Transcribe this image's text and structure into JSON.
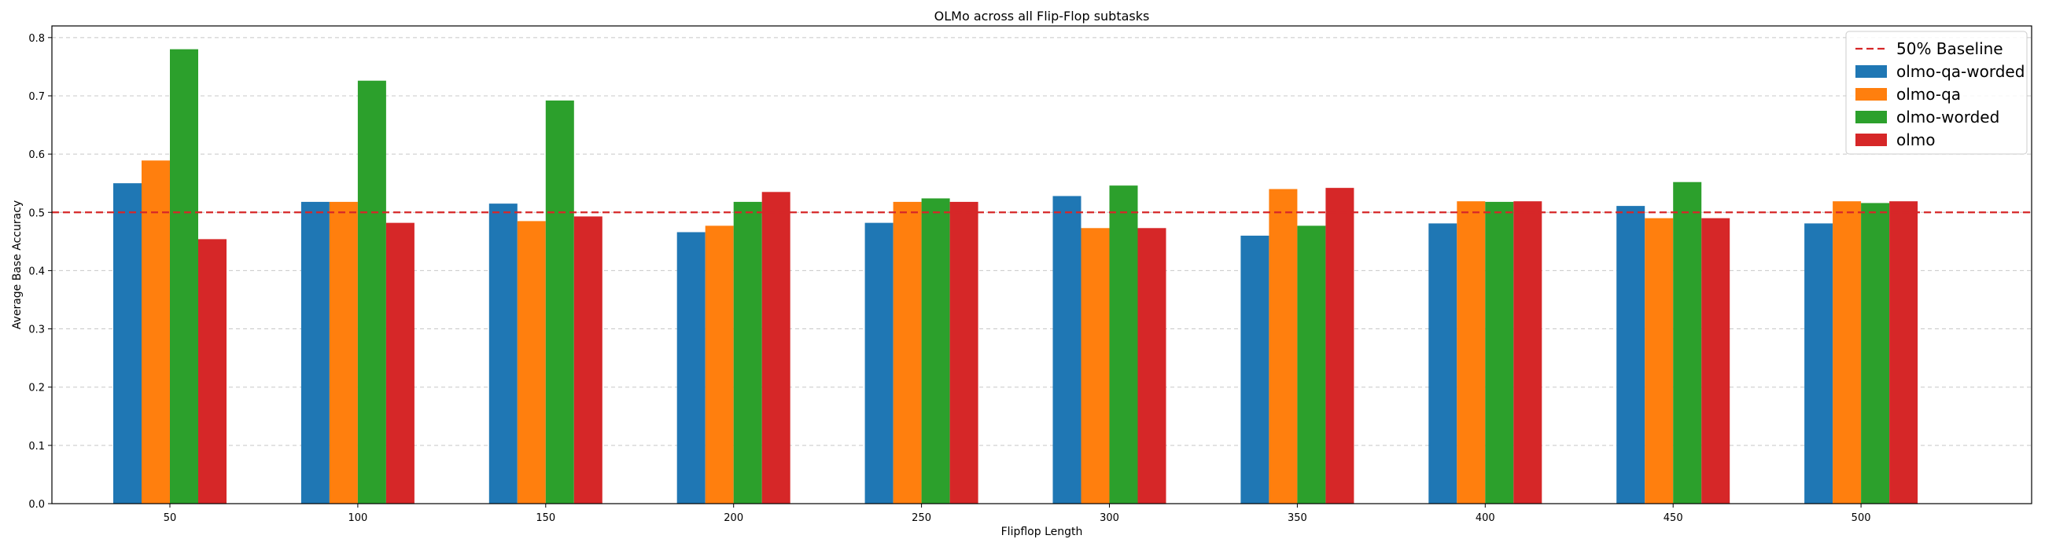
{
  "chart_data": {
    "type": "bar",
    "title": "OLMo across all Flip-Flop subtasks",
    "xlabel": "Flipflop Length",
    "ylabel": "Average Base Accuracy",
    "categories": [
      "50",
      "100",
      "150",
      "200",
      "250",
      "300",
      "350",
      "400",
      "450",
      "500"
    ],
    "ylim": [
      0,
      0.82
    ],
    "yticks": [
      "0.0",
      "0.1",
      "0.2",
      "0.3",
      "0.4",
      "0.5",
      "0.6",
      "0.7",
      "0.8"
    ],
    "grid": "horizontal dashed",
    "legend_position": "top-right",
    "baseline": {
      "name": "50% Baseline",
      "value": 0.5,
      "color": "#d62728",
      "style": "dashed"
    },
    "series": [
      {
        "name": "olmo-qa-worded",
        "color": "#1f77b4",
        "values": [
          0.55,
          0.518,
          0.515,
          0.466,
          0.482,
          0.528,
          0.46,
          0.481,
          0.511,
          0.481
        ]
      },
      {
        "name": "olmo-qa",
        "color": "#ff7f0e",
        "values": [
          0.589,
          0.518,
          0.485,
          0.477,
          0.518,
          0.473,
          0.54,
          0.519,
          0.49,
          0.519
        ]
      },
      {
        "name": "olmo-worded",
        "color": "#2ca02c",
        "values": [
          0.78,
          0.726,
          0.692,
          0.518,
          0.524,
          0.546,
          0.477,
          0.518,
          0.552,
          0.516
        ]
      },
      {
        "name": "olmo",
        "color": "#d62728",
        "values": [
          0.454,
          0.482,
          0.493,
          0.535,
          0.518,
          0.473,
          0.542,
          0.519,
          0.49,
          0.519
        ]
      }
    ]
  }
}
